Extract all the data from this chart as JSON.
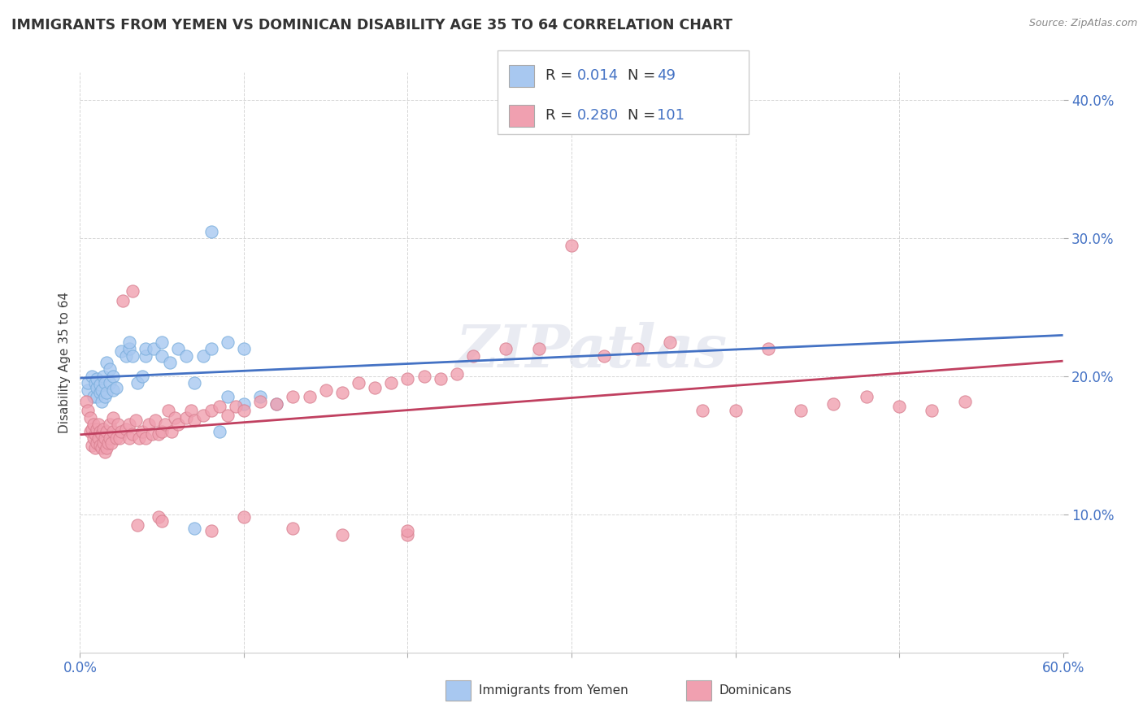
{
  "title": "IMMIGRANTS FROM YEMEN VS DOMINICAN DISABILITY AGE 35 TO 64 CORRELATION CHART",
  "source": "Source: ZipAtlas.com",
  "ylabel": "Disability Age 35 to 64",
  "xmin": 0.0,
  "xmax": 0.6,
  "ymin": 0.0,
  "ymax": 0.42,
  "legend1_R": "0.014",
  "legend1_N": "49",
  "legend2_R": "0.280",
  "legend2_N": "101",
  "color_yemen": "#a8c8f0",
  "color_dominican": "#f0a0b0",
  "color_line_yemen": "#4472c4",
  "color_line_dominican": "#c04060",
  "watermark": "ZIPatlas",
  "yemen_x": [
    0.005,
    0.005,
    0.007,
    0.008,
    0.009,
    0.01,
    0.01,
    0.01,
    0.012,
    0.012,
    0.013,
    0.013,
    0.014,
    0.015,
    0.015,
    0.016,
    0.016,
    0.018,
    0.018,
    0.02,
    0.02,
    0.022,
    0.025,
    0.028,
    0.03,
    0.03,
    0.032,
    0.035,
    0.038,
    0.04,
    0.04,
    0.045,
    0.05,
    0.055,
    0.06,
    0.065,
    0.07,
    0.075,
    0.08,
    0.085,
    0.09,
    0.1,
    0.11,
    0.12,
    0.07,
    0.08,
    0.09,
    0.1,
    0.05
  ],
  "yemen_y": [
    0.19,
    0.195,
    0.2,
    0.185,
    0.195,
    0.185,
    0.192,
    0.198,
    0.188,
    0.194,
    0.182,
    0.19,
    0.2,
    0.185,
    0.195,
    0.21,
    0.188,
    0.195,
    0.205,
    0.19,
    0.2,
    0.192,
    0.218,
    0.215,
    0.22,
    0.225,
    0.215,
    0.195,
    0.2,
    0.215,
    0.22,
    0.22,
    0.215,
    0.21,
    0.22,
    0.215,
    0.195,
    0.215,
    0.305,
    0.16,
    0.185,
    0.18,
    0.185,
    0.18,
    0.09,
    0.22,
    0.225,
    0.22,
    0.225
  ],
  "dominican_x": [
    0.004,
    0.005,
    0.006,
    0.006,
    0.007,
    0.007,
    0.008,
    0.008,
    0.009,
    0.009,
    0.01,
    0.01,
    0.011,
    0.011,
    0.012,
    0.012,
    0.013,
    0.013,
    0.014,
    0.014,
    0.015,
    0.015,
    0.016,
    0.016,
    0.017,
    0.018,
    0.018,
    0.019,
    0.02,
    0.02,
    0.022,
    0.023,
    0.024,
    0.025,
    0.026,
    0.028,
    0.03,
    0.03,
    0.032,
    0.034,
    0.036,
    0.038,
    0.04,
    0.042,
    0.044,
    0.046,
    0.048,
    0.05,
    0.052,
    0.054,
    0.056,
    0.058,
    0.06,
    0.065,
    0.068,
    0.07,
    0.075,
    0.08,
    0.085,
    0.09,
    0.095,
    0.1,
    0.11,
    0.12,
    0.13,
    0.14,
    0.15,
    0.16,
    0.17,
    0.18,
    0.19,
    0.2,
    0.21,
    0.22,
    0.23,
    0.24,
    0.26,
    0.28,
    0.3,
    0.32,
    0.34,
    0.36,
    0.38,
    0.4,
    0.42,
    0.44,
    0.46,
    0.48,
    0.5,
    0.52,
    0.54,
    0.048,
    0.032,
    0.2,
    0.035,
    0.05,
    0.08,
    0.1,
    0.13,
    0.16,
    0.2
  ],
  "dominican_y": [
    0.182,
    0.175,
    0.16,
    0.17,
    0.15,
    0.162,
    0.155,
    0.165,
    0.148,
    0.158,
    0.152,
    0.162,
    0.155,
    0.165,
    0.15,
    0.16,
    0.148,
    0.158,
    0.152,
    0.162,
    0.145,
    0.155,
    0.148,
    0.16,
    0.152,
    0.155,
    0.165,
    0.152,
    0.16,
    0.17,
    0.155,
    0.165,
    0.155,
    0.16,
    0.255,
    0.162,
    0.155,
    0.165,
    0.158,
    0.168,
    0.155,
    0.16,
    0.155,
    0.165,
    0.158,
    0.168,
    0.158,
    0.16,
    0.165,
    0.175,
    0.16,
    0.17,
    0.165,
    0.17,
    0.175,
    0.168,
    0.172,
    0.175,
    0.178,
    0.172,
    0.178,
    0.175,
    0.182,
    0.18,
    0.185,
    0.185,
    0.19,
    0.188,
    0.195,
    0.192,
    0.195,
    0.198,
    0.2,
    0.198,
    0.202,
    0.215,
    0.22,
    0.22,
    0.295,
    0.215,
    0.22,
    0.225,
    0.175,
    0.175,
    0.22,
    0.175,
    0.18,
    0.185,
    0.178,
    0.175,
    0.182,
    0.098,
    0.262,
    0.085,
    0.092,
    0.095,
    0.088,
    0.098,
    0.09,
    0.085,
    0.088
  ]
}
